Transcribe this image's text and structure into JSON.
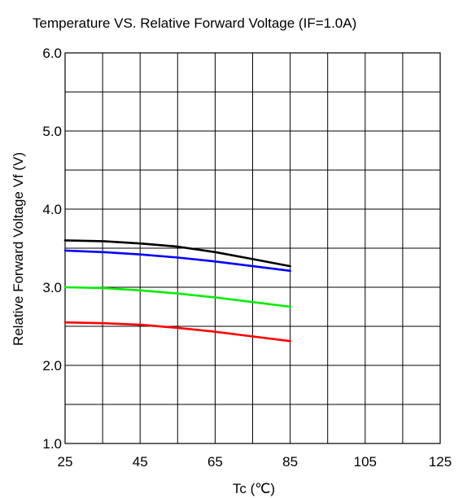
{
  "chart_data": {
    "type": "line",
    "title": "Temperature VS. Relative Forward  Voltage (IF=1.0A)",
    "xlabel": "Tc (℃)",
    "ylabel": "Relative Forward  Voltage  Vf  (V)",
    "x_ticks": [
      "25",
      "45",
      "65",
      "85",
      "105",
      "125"
    ],
    "y_ticks": [
      "1.0",
      "2.0",
      "3.0",
      "4.0",
      "5.0",
      "6.0"
    ],
    "xlim": [
      25,
      125
    ],
    "ylim": [
      1.0,
      6.0
    ],
    "grid": true,
    "series": [
      {
        "color": "#000000",
        "x": [
          25,
          35,
          45,
          55,
          65,
          75,
          85
        ],
        "y": [
          3.6,
          3.59,
          3.56,
          3.52,
          3.45,
          3.36,
          3.27
        ]
      },
      {
        "color": "#0000ff",
        "x": [
          25,
          35,
          45,
          55,
          65,
          75,
          85
        ],
        "y": [
          3.47,
          3.45,
          3.42,
          3.38,
          3.33,
          3.27,
          3.21
        ]
      },
      {
        "color": "#00ee00",
        "x": [
          25,
          35,
          45,
          55,
          65,
          75,
          85
        ],
        "y": [
          3.0,
          2.99,
          2.96,
          2.92,
          2.87,
          2.81,
          2.75
        ]
      },
      {
        "color": "#ff0000",
        "x": [
          25,
          35,
          45,
          55,
          65,
          75,
          85
        ],
        "y": [
          2.55,
          2.54,
          2.52,
          2.48,
          2.43,
          2.37,
          2.31
        ]
      }
    ]
  }
}
